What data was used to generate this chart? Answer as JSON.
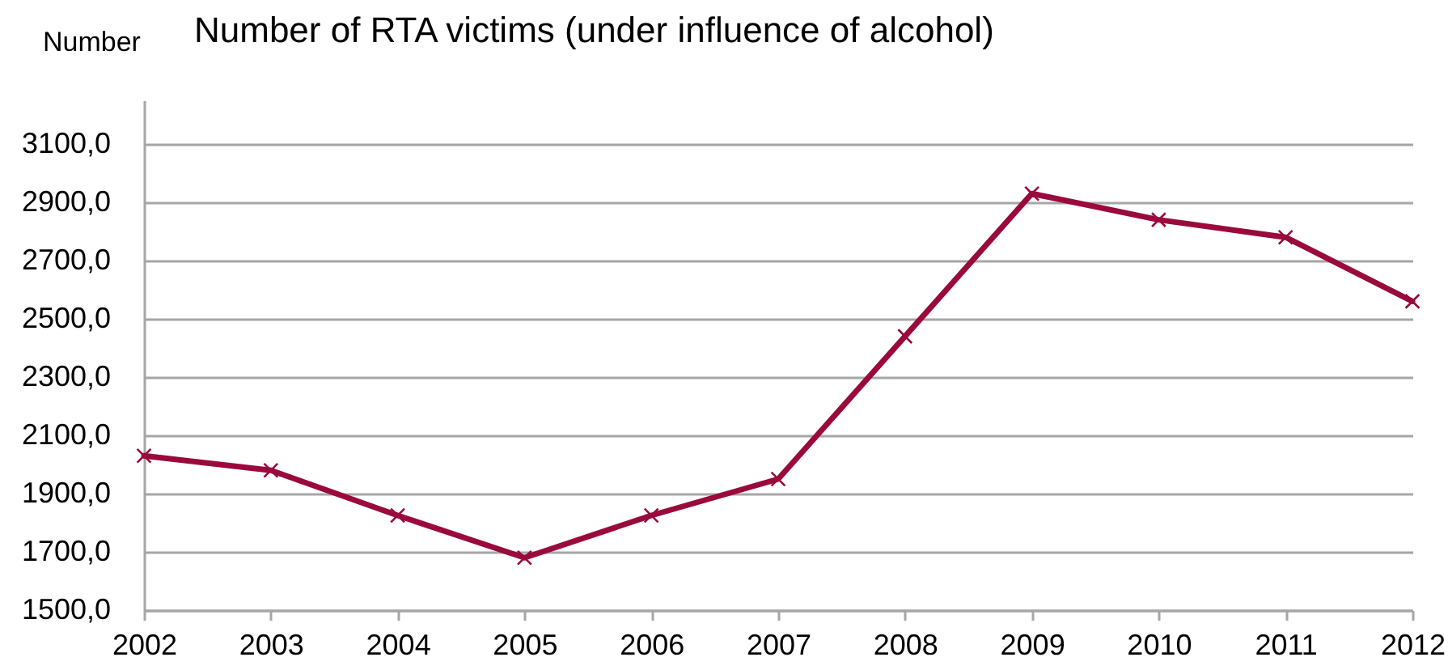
{
  "chart_data": {
    "type": "line",
    "title": "Number of RTA victims (under influence of alcohol)",
    "ylabel": "Number",
    "categories": [
      "2002",
      "2003",
      "2004",
      "2005",
      "2006",
      "2007",
      "2008",
      "2009",
      "2010",
      "2011",
      "2012"
    ],
    "series": [
      {
        "color": "#9a0a3c",
        "values": [
          2030,
          1980,
          1825,
          1680,
          1825,
          1950,
          2440,
          2930,
          2840,
          2780,
          2560
        ]
      }
    ],
    "ylim": [
      1500,
      3250
    ],
    "yticks": [
      {
        "value": 1500,
        "label": "1500,0"
      },
      {
        "value": 1700,
        "label": "1700,0"
      },
      {
        "value": 1900,
        "label": "1900,0"
      },
      {
        "value": 2100,
        "label": "2100,0"
      },
      {
        "value": 2300,
        "label": "2300,0"
      },
      {
        "value": 2500,
        "label": "2500,0"
      },
      {
        "value": 2700,
        "label": "2700,0"
      },
      {
        "value": 2900,
        "label": "2900,0"
      },
      {
        "value": 3100,
        "label": "3100,0"
      }
    ],
    "grid": "y",
    "marker": "cross",
    "line_style": "solid"
  }
}
